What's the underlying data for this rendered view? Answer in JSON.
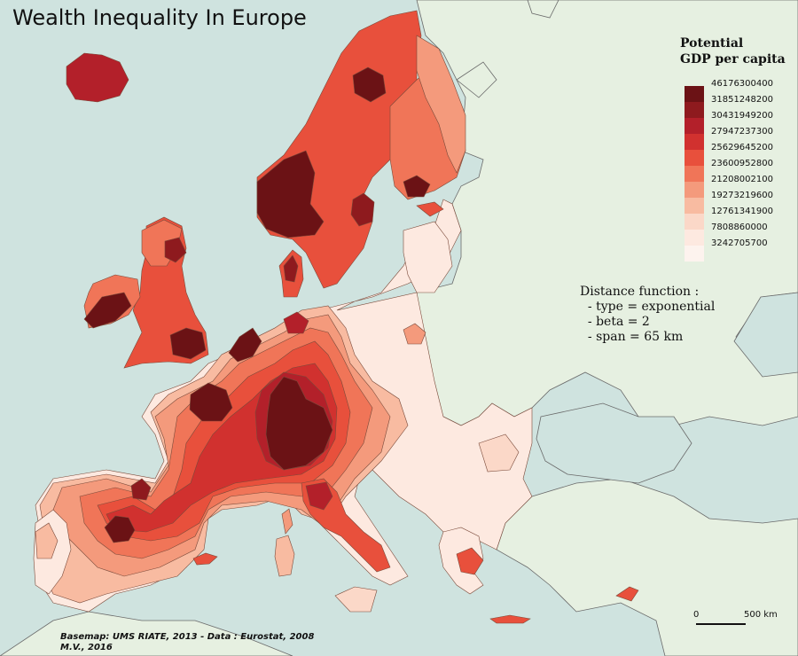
{
  "map": {
    "title": "Wealth Inequality In Europe",
    "legend_title_line1": "Potential",
    "legend_title_line2": "GDP per capita",
    "legend": [
      {
        "label": "46176300400",
        "color": "#6b1215"
      },
      {
        "label": "31851248200",
        "color": "#8e1a1e"
      },
      {
        "label": "30431949200",
        "color": "#b3202a"
      },
      {
        "label": "27947237300",
        "color": "#d1312f"
      },
      {
        "label": "25629645200",
        "color": "#e8503c"
      },
      {
        "label": "23600952800",
        "color": "#f07558"
      },
      {
        "label": "21208002100",
        "color": "#f49a7c"
      },
      {
        "label": "19273219600",
        "color": "#f8bba1"
      },
      {
        "label": "12761341900",
        "color": "#fbd8c8"
      },
      {
        "label": "7808860000",
        "color": "#fde9e0"
      },
      {
        "label": "3242705700",
        "color": "#fdf3ee"
      }
    ],
    "note_lines": [
      "Distance function :",
      "  - type = exponential",
      "  - beta = 2",
      "  - span = 65 km"
    ],
    "scale_left": "0",
    "scale_right": "500 km",
    "source_line1": "Basemap: UMS RIATE, 2013 - Data : Eurostat, 2008",
    "source_line2": "M.V., 2016",
    "colors": {
      "sea": "#cfe3df",
      "outside_land": "#e6f0e1",
      "border": "#555555"
    }
  }
}
